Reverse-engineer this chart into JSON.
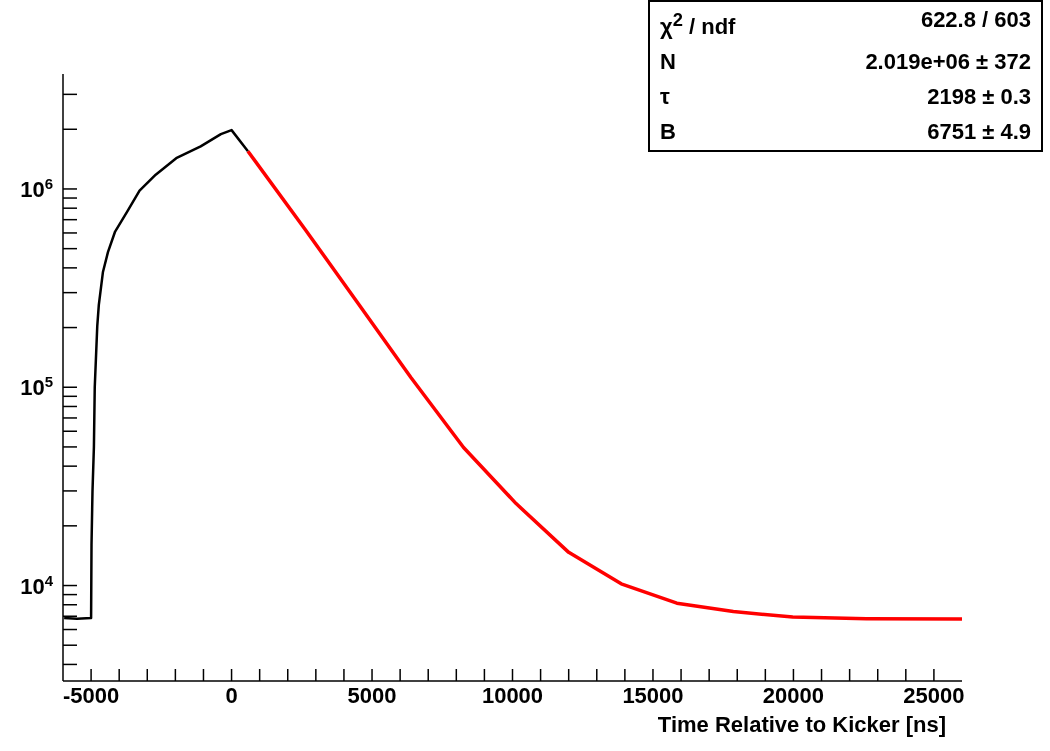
{
  "chart_data": {
    "type": "line",
    "xlabel": "Time Relative to Kicker [ns]",
    "xlim": [
      -6000,
      26000
    ],
    "xticks": [
      -5000,
      {
        "value": -4000,
        "label": null
      },
      {
        "value": -3000,
        "label": null
      },
      {
        "value": -2000,
        "label": null
      },
      {
        "value": -1000,
        "label": null
      },
      0,
      {
        "value": 1000,
        "label": null
      },
      {
        "value": 2000,
        "label": null
      },
      {
        "value": 3000,
        "label": null
      },
      {
        "value": 4000,
        "label": null
      },
      5000,
      {
        "value": 6000,
        "label": null
      },
      {
        "value": 7000,
        "label": null
      },
      {
        "value": 8000,
        "label": null
      },
      {
        "value": 9000,
        "label": null
      },
      10000,
      {
        "value": 11000,
        "label": null
      },
      {
        "value": 12000,
        "label": null
      },
      {
        "value": 13000,
        "label": null
      },
      {
        "value": 14000,
        "label": null
      },
      15000,
      {
        "value": 16000,
        "label": null
      },
      {
        "value": 17000,
        "label": null
      },
      {
        "value": 18000,
        "label": null
      },
      {
        "value": 19000,
        "label": null
      },
      20000,
      {
        "value": 21000,
        "label": null
      },
      {
        "value": 22000,
        "label": null
      },
      {
        "value": 23000,
        "label": null
      },
      {
        "value": 24000,
        "label": null
      },
      25000
    ],
    "ylim": [
      3300,
      3800000
    ],
    "yticks": [
      {
        "value": 4000,
        "label": null
      },
      {
        "value": 5000,
        "label": null
      },
      {
        "value": 6000,
        "label": null
      },
      {
        "value": 7000,
        "label": null
      },
      {
        "value": 8000,
        "label": null
      },
      {
        "value": 9000,
        "label": null
      },
      {
        "value": 10000,
        "label": "10$^{4}$"
      },
      {
        "value": 20000,
        "label": null
      },
      {
        "value": 30000,
        "label": null
      },
      {
        "value": 40000,
        "label": null
      },
      {
        "value": 50000,
        "label": null
      },
      {
        "value": 60000,
        "label": null
      },
      {
        "value": 70000,
        "label": null
      },
      {
        "value": 80000,
        "label": null
      },
      {
        "value": 90000,
        "label": null
      },
      {
        "value": 100000,
        "label": "10$^{5}$"
      },
      {
        "value": 200000,
        "label": null
      },
      {
        "value": 300000,
        "label": null
      },
      {
        "value": 400000,
        "label": null
      },
      {
        "value": 500000,
        "label": null
      },
      {
        "value": 600000,
        "label": null
      },
      {
        "value": 700000,
        "label": null
      },
      {
        "value": 800000,
        "label": null
      },
      {
        "value": 900000,
        "label": null
      },
      {
        "value": 1000000,
        "label": "10$^{6}$"
      },
      {
        "value": 2000000,
        "label": null
      },
      {
        "value": 3000000,
        "label": null
      }
    ],
    "log": true,
    "annotations": [
      "χ$^{2}$ / ndf",
      "622.8 / 603",
      "N",
      "2.019e+06 ± 372",
      "τ",
      "2198 ± 0.3",
      "B",
      "6751 ± 4.9"
    ],
    "series": [
      {
        "type": "line",
        "color": "#000000",
        "x": [
          -5960,
          -5500,
          -5000,
          -4985,
          -4950,
          -4900,
          -4870,
          -4780,
          -4725,
          -4580,
          -4400,
          -4145,
          -3710,
          -3275,
          -2700,
          -1970,
          -1100,
          -380,
          0,
          583
        ],
        "values": [
          6850,
          6800,
          6850,
          16000,
          30000,
          50000,
          100000,
          204000,
          260000,
          380000,
          480000,
          610000,
          770000,
          980000,
          1180000,
          1430000,
          1640000,
          1890000,
          1980000,
          1550000
        ]
      },
      {
        "type": "line",
        "color": "#ff0000",
        "x": [
          583,
          2640,
          4513,
          6384,
          8258,
          10128,
          12000,
          13870,
          15850,
          17860,
          19975,
          22600,
          26000
        ],
        "values": [
          1550000,
          619000,
          264000,
          112000,
          49700,
          25900,
          14700,
          10200,
          8150,
          7390,
          6930,
          6790,
          6770
        ]
      }
    ]
  }
}
